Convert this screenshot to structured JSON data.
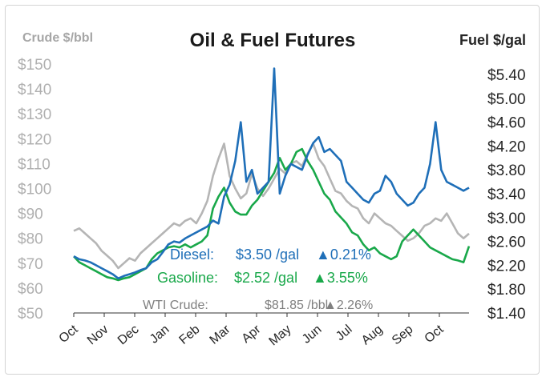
{
  "chart_data": {
    "type": "line",
    "title": "Oil & Fuel Futures",
    "y_left_label": "Crude $/bbl",
    "y_right_label": "Fuel $/gal",
    "y_left_ticks": [
      "$150",
      "$140",
      "$130",
      "$120",
      "$110",
      "$100",
      "$90",
      "$80",
      "$70",
      "$60",
      "$50"
    ],
    "y_left_range": [
      50,
      150
    ],
    "y_right_ticks": [
      "$5.40",
      "$5.00",
      "$4.60",
      "$4.20",
      "$3.80",
      "$3.40",
      "$3.00",
      "$2.60",
      "$2.20",
      "$1.80",
      "$1.40"
    ],
    "y_right_range": [
      1.4,
      5.4
    ],
    "x_ticks": [
      "Oct",
      "Nov",
      "Dec",
      "Jan",
      "Feb",
      "Mar",
      "Apr",
      "May",
      "Jun",
      "Jul",
      "Aug",
      "Sep",
      "Oct"
    ],
    "grid": false,
    "colors": {
      "diesel": "#1f6fb8",
      "gasoline": "#19a84a",
      "crude": "#b5b5b5"
    },
    "series": [
      {
        "name": "Diesel",
        "axis": "right",
        "values": [
          2.35,
          2.3,
          2.28,
          2.25,
          2.2,
          2.15,
          2.1,
          2.05,
          1.98,
          2.02,
          2.05,
          2.08,
          2.12,
          2.15,
          2.25,
          2.3,
          2.42,
          2.55,
          2.6,
          2.58,
          2.65,
          2.7,
          2.75,
          2.8,
          2.85,
          2.95,
          2.9,
          3.35,
          3.55,
          3.95,
          4.6,
          3.6,
          3.8,
          3.4,
          3.5,
          3.6,
          5.5,
          3.4,
          3.7,
          3.9,
          3.85,
          3.8,
          4.05,
          4.25,
          4.35,
          4.1,
          4.15,
          4.05,
          3.95,
          3.6,
          3.5,
          3.4,
          3.3,
          3.25,
          3.4,
          3.45,
          3.7,
          3.6,
          3.4,
          3.3,
          3.2,
          3.25,
          3.4,
          3.5,
          3.9,
          4.6,
          3.8,
          3.6,
          3.55,
          3.5,
          3.45,
          3.5
        ]
      },
      {
        "name": "Gasoline",
        "axis": "right",
        "values": [
          2.35,
          2.25,
          2.2,
          2.15,
          2.1,
          2.05,
          2.0,
          1.98,
          1.95,
          1.98,
          2.0,
          2.05,
          2.1,
          2.15,
          2.3,
          2.4,
          2.45,
          2.5,
          2.52,
          2.5,
          2.55,
          2.5,
          2.55,
          2.6,
          2.7,
          3.15,
          3.35,
          3.5,
          3.25,
          3.1,
          3.05,
          3.05,
          3.2,
          3.3,
          3.45,
          3.6,
          3.75,
          4.0,
          3.8,
          3.9,
          4.1,
          4.15,
          3.95,
          3.8,
          3.6,
          3.4,
          3.3,
          3.1,
          3.0,
          2.9,
          2.75,
          2.7,
          2.55,
          2.45,
          2.5,
          2.4,
          2.35,
          2.3,
          2.35,
          2.6,
          2.7,
          2.8,
          2.7,
          2.6,
          2.5,
          2.45,
          2.4,
          2.35,
          2.3,
          2.28,
          2.25,
          2.52
        ]
      },
      {
        "name": "WTI Crude",
        "axis": "left",
        "values": [
          83,
          84,
          82,
          80,
          78,
          75,
          73,
          71,
          68,
          70,
          72,
          71,
          74,
          76,
          78,
          80,
          82,
          84,
          86,
          85,
          87,
          88,
          86,
          90,
          95,
          105,
          112,
          118,
          105,
          100,
          96,
          98,
          106,
          100,
          97,
          100,
          104,
          108,
          106,
          110,
          111,
          109,
          114,
          118,
          112,
          109,
          104,
          99,
          98,
          95,
          93,
          92,
          88,
          86,
          90,
          88,
          86,
          85,
          83,
          81,
          79,
          80,
          82,
          85,
          86,
          88,
          87,
          90,
          86,
          82,
          80,
          81.85
        ]
      }
    ],
    "annotations": [
      {
        "label": "Diesel:",
        "value": "$3.50 /gal",
        "change": "▲0.21%"
      },
      {
        "label": "Gasoline:",
        "value": "$2.52 /gal",
        "change": "▲3.55%"
      },
      {
        "label": "WTI Crude:",
        "value": "$81.85 /bbl",
        "change": "▲2.26%"
      }
    ]
  }
}
